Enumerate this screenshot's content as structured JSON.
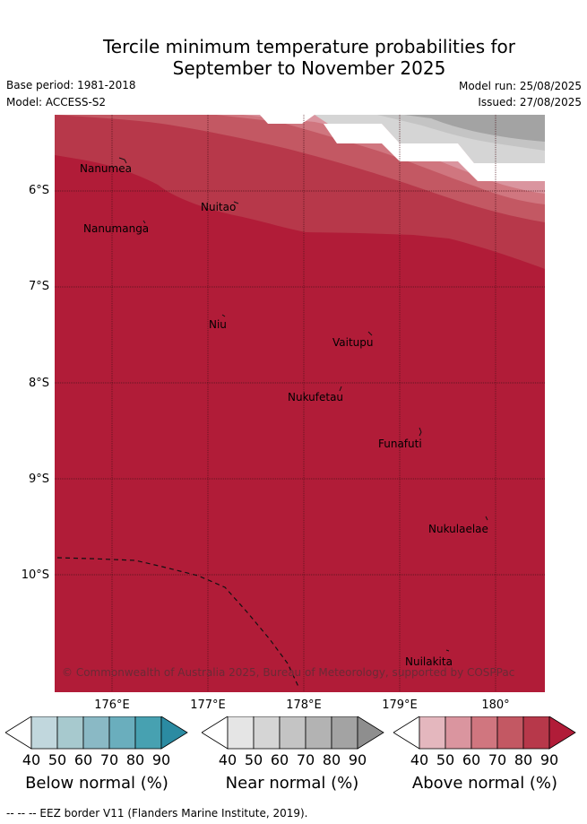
{
  "title_line1": "Tercile minimum temperature probabilities for",
  "title_line2": "September to November 2025",
  "base_period": "Base period: 1981-2018",
  "model": "Model: ACCESS-S2",
  "model_run": "Model run: 25/08/2025",
  "issued": "Issued: 27/08/2025",
  "lat_labels": [
    "6°S",
    "7°S",
    "8°S",
    "9°S",
    "10°S"
  ],
  "lon_labels": [
    "176°E",
    "177°E",
    "178°E",
    "179°E",
    "180°"
  ],
  "places": [
    {
      "name": "Nanumea"
    },
    {
      "name": "Nuitao"
    },
    {
      "name": "Nanumanga"
    },
    {
      "name": "Niu"
    },
    {
      "name": "Vaitupu"
    },
    {
      "name": "Nukufetau"
    },
    {
      "name": "Funafuti"
    },
    {
      "name": "Nukulaelae"
    },
    {
      "name": "Nuilakita"
    }
  ],
  "credit": "© Commonwealth of Australia 2025, Bureau of Meteorology, supported by COSPPac",
  "colorbars": [
    {
      "label": "Below normal (%)",
      "ticks": [
        "40",
        "50",
        "60",
        "70",
        "80",
        "90"
      ],
      "colors": [
        "#ffffff",
        "#c1d7dd",
        "#a7c9ce",
        "#8ab9c5",
        "#6aaebd",
        "#47a1b1",
        "#2b8ba2"
      ]
    },
    {
      "label": "Near normal (%)",
      "ticks": [
        "40",
        "50",
        "60",
        "70",
        "80",
        "90"
      ],
      "colors": [
        "#ffffff",
        "#e5e5e5",
        "#d5d5d5",
        "#c4c4c4",
        "#b3b3b3",
        "#a3a3a3",
        "#8e8e8e"
      ]
    },
    {
      "label": "Above normal (%)",
      "ticks": [
        "40",
        "50",
        "60",
        "70",
        "80",
        "90"
      ],
      "colors": [
        "#ffffff",
        "#e4b7be",
        "#da959f",
        "#d0767f",
        "#c35863",
        "#b7384a",
        "#b11c38"
      ]
    }
  ],
  "footer": "--  --  -- EEZ border V11 (Flanders Marine Institute, 2019)."
}
